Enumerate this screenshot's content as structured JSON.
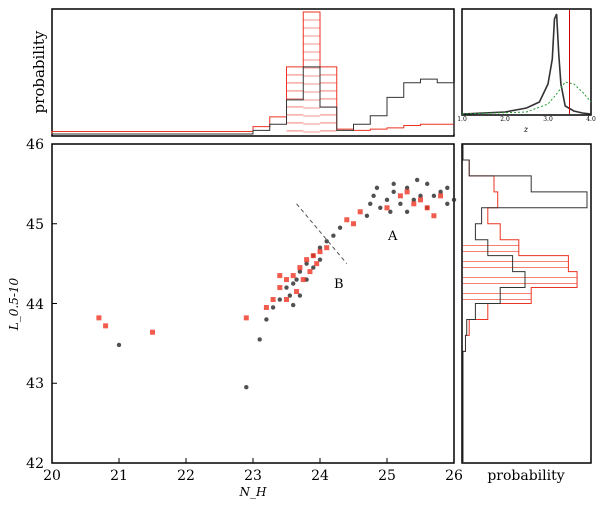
{
  "chart_data": [
    {
      "id": "main",
      "type": "scatter",
      "xlabel": "N_H",
      "ylabel": "L_0.5-10",
      "xlim": [
        20,
        26
      ],
      "ylim": [
        42,
        46
      ],
      "x_ticks": [
        "20",
        "21",
        "22",
        "23",
        "24",
        "25",
        "26"
      ],
      "y_ticks": [
        "42",
        "43",
        "44",
        "45",
        "46"
      ],
      "annotations": [
        "A",
        "B"
      ],
      "divider_line": {
        "x": [
          23.65,
          24.4
        ],
        "y": [
          45.25,
          44.5
        ]
      },
      "colors": {
        "black_series": "#333333",
        "red_series": "#ee3322"
      },
      "series": [
        {
          "color_key": "black_series",
          "points": [
            [
              21.0,
              43.48
            ],
            [
              22.9,
              42.95
            ],
            [
              23.1,
              43.55
            ],
            [
              23.2,
              43.8
            ],
            [
              23.3,
              43.95
            ],
            [
              23.4,
              44.05
            ],
            [
              23.5,
              44.2
            ],
            [
              23.6,
              44.25
            ],
            [
              23.6,
              43.98
            ],
            [
              23.7,
              44.4
            ],
            [
              23.7,
              44.1
            ],
            [
              23.8,
              44.3
            ],
            [
              23.8,
              44.5
            ],
            [
              23.9,
              44.45
            ],
            [
              23.9,
              44.6
            ],
            [
              24.0,
              44.55
            ],
            [
              24.0,
              44.7
            ],
            [
              24.1,
              44.78
            ],
            [
              23.55,
              44.1
            ],
            [
              23.65,
              44.3
            ],
            [
              24.2,
              44.85
            ],
            [
              24.3,
              44.95
            ],
            [
              24.9,
              45.2
            ],
            [
              25.0,
              45.3
            ],
            [
              25.1,
              45.4
            ],
            [
              25.2,
              45.25
            ],
            [
              25.3,
              45.45
            ],
            [
              25.4,
              45.3
            ],
            [
              25.5,
              45.35
            ],
            [
              25.6,
              45.2
            ],
            [
              25.7,
              45.35
            ],
            [
              25.8,
              45.4
            ],
            [
              25.9,
              45.25
            ],
            [
              26.0,
              45.3
            ],
            [
              24.8,
              45.35
            ],
            [
              24.7,
              45.1
            ],
            [
              25.1,
              45.5
            ],
            [
              25.6,
              45.5
            ],
            [
              25.3,
              45.15
            ],
            [
              25.9,
              45.45
            ],
            [
              24.85,
              45.45
            ],
            [
              25.45,
              45.55
            ],
            [
              24.75,
              45.25
            ],
            [
              25.05,
              45.15
            ]
          ]
        },
        {
          "color_key": "red_series",
          "points": [
            [
              20.7,
              43.82
            ],
            [
              20.8,
              43.72
            ],
            [
              21.5,
              43.64
            ],
            [
              22.9,
              43.82
            ],
            [
              23.2,
              43.95
            ],
            [
              23.3,
              44.05
            ],
            [
              23.4,
              44.2
            ],
            [
              23.5,
              44.3
            ],
            [
              23.6,
              44.35
            ],
            [
              23.65,
              44.15
            ],
            [
              23.7,
              44.45
            ],
            [
              23.75,
              44.3
            ],
            [
              23.8,
              44.55
            ],
            [
              23.85,
              44.4
            ],
            [
              23.9,
              44.6
            ],
            [
              23.95,
              44.5
            ],
            [
              24.0,
              44.65
            ],
            [
              23.5,
              44.05
            ],
            [
              23.4,
              44.35
            ],
            [
              24.1,
              44.7
            ],
            [
              24.4,
              45.05
            ],
            [
              24.5,
              45.0
            ],
            [
              24.6,
              45.15
            ],
            [
              25.0,
              45.2
            ],
            [
              25.2,
              45.35
            ],
            [
              25.4,
              45.25
            ],
            [
              25.5,
              45.3
            ],
            [
              25.6,
              45.2
            ],
            [
              25.8,
              45.35
            ],
            [
              25.3,
              45.4
            ],
            [
              25.7,
              45.1
            ]
          ]
        }
      ]
    },
    {
      "id": "top-hist",
      "type": "histogram",
      "ylabel": "probability",
      "xlim": [
        20,
        26
      ],
      "bin_edges": [
        20,
        20.25,
        20.5,
        20.75,
        21,
        21.25,
        21.5,
        21.75,
        22,
        22.25,
        22.5,
        22.75,
        23,
        23.25,
        23.5,
        23.75,
        24,
        24.25,
        24.5,
        24.75,
        25,
        25.25,
        25.5,
        25.75,
        26
      ],
      "series": [
        {
          "color_key": "red_series",
          "values": [
            0.02,
            0.02,
            0.02,
            0.02,
            0.02,
            0.02,
            0.02,
            0.02,
            0.02,
            0.02,
            0.02,
            0.02,
            0.06,
            0.14,
            0.55,
            1.0,
            0.55,
            0.04,
            0.03,
            0.04,
            0.05,
            0.07,
            0.08,
            0.08
          ]
        },
        {
          "color_key": "black_series",
          "values": [
            0,
            0,
            0,
            0,
            0,
            0,
            0,
            0,
            0,
            0,
            0,
            0,
            0.03,
            0.08,
            0.28,
            0.55,
            0.22,
            0.03,
            0.08,
            0.15,
            0.3,
            0.42,
            0.45,
            0.42
          ]
        }
      ]
    },
    {
      "id": "right-hist",
      "type": "histogram",
      "orientation": "horizontal",
      "xlabel": "probability",
      "ylim": [
        42,
        46
      ],
      "bin_edges": [
        42,
        42.2,
        42.4,
        42.6,
        42.8,
        43,
        43.2,
        43.4,
        43.6,
        43.8,
        44,
        44.2,
        44.4,
        44.6,
        44.8,
        45,
        45.2,
        45.4,
        45.6,
        45.8,
        46
      ],
      "series": [
        {
          "color_key": "red_series",
          "values": [
            0,
            0,
            0,
            0,
            0,
            0,
            0,
            0.02,
            0.05,
            0.2,
            0.55,
            0.92,
            0.85,
            0.45,
            0.3,
            0.2,
            0.28,
            0.25,
            0.05,
            0
          ]
        },
        {
          "color_key": "black_series",
          "values": [
            0,
            0,
            0,
            0,
            0,
            0,
            0,
            0.02,
            0.03,
            0.1,
            0.3,
            0.5,
            0.4,
            0.2,
            0.1,
            0.15,
            1.0,
            0.55,
            0.05,
            0
          ]
        }
      ]
    },
    {
      "id": "z-inset",
      "type": "line",
      "xlabel": "z",
      "xlim": [
        1.0,
        4.0
      ],
      "x_ticks": [
        "1.0",
        "2.0",
        "3.0",
        "4.0"
      ],
      "marker_x": 3.5,
      "series": [
        {
          "color_key": "black_series",
          "x": [
            1.0,
            2.0,
            2.5,
            2.8,
            3.0,
            3.1,
            3.15,
            3.2,
            3.25,
            3.3,
            3.4,
            3.6,
            3.8,
            4.0
          ],
          "y": [
            0.0,
            0.02,
            0.06,
            0.12,
            0.3,
            0.55,
            0.95,
            1.0,
            0.6,
            0.3,
            0.08,
            0.03,
            0.01,
            0.0
          ]
        },
        {
          "color_key": "green_series",
          "x": [
            1.0,
            2.5,
            3.0,
            3.2,
            3.4,
            3.6,
            3.8,
            4.0
          ],
          "y": [
            0.0,
            0.02,
            0.1,
            0.2,
            0.32,
            0.3,
            0.22,
            0.12
          ]
        }
      ],
      "colors": {
        "marker": "#cc0000",
        "green_series": "#229933"
      }
    }
  ]
}
